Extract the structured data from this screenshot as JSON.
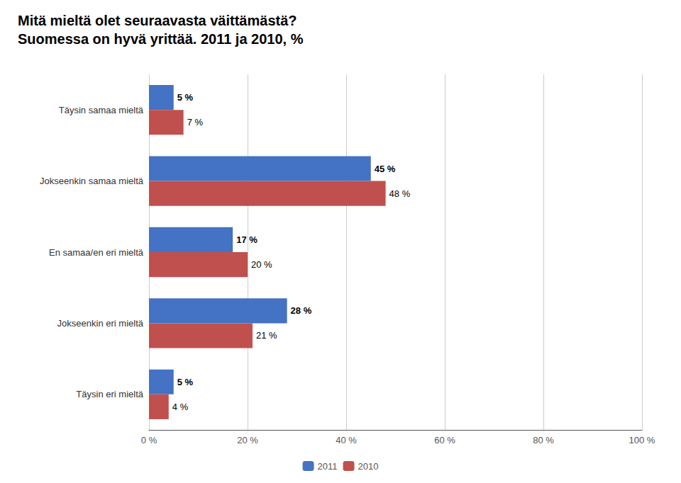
{
  "chart_data": {
    "type": "bar",
    "orientation": "horizontal",
    "title": "Mitä mieltä olet seuraavasta väittämästä?",
    "subtitle": "Suomessa on hyvä yrittää. 2011 ja 2010, %",
    "categories": [
      "Täysin samaa mieltä",
      "Jokseenkin samaa mieltä",
      "En samaa/en eri mieltä",
      "Jokseenkin eri mieltä",
      "Täysin eri mieltä"
    ],
    "series": [
      {
        "name": "2011",
        "color": "#4472C4",
        "values": [
          5,
          45,
          17,
          28,
          5
        ],
        "value_labels": [
          "5 %",
          "45 %",
          "17 %",
          "28 %",
          "5 %"
        ]
      },
      {
        "name": "2010",
        "color": "#C0504D",
        "values": [
          7,
          48,
          20,
          21,
          4
        ],
        "value_labels": [
          "7 %",
          "48 %",
          "20 %",
          "21 %",
          "4 %"
        ]
      }
    ],
    "xlim": [
      0,
      100
    ],
    "xticks": [
      {
        "value": 0,
        "label": "0 %"
      },
      {
        "value": 20,
        "label": "20 %"
      },
      {
        "value": 40,
        "label": "40 %"
      },
      {
        "value": 60,
        "label": "60 %"
      },
      {
        "value": 80,
        "label": "80 %"
      },
      {
        "value": 100,
        "label": "100 %"
      }
    ],
    "grid": true,
    "data_labels": true,
    "legend": "bottom"
  }
}
